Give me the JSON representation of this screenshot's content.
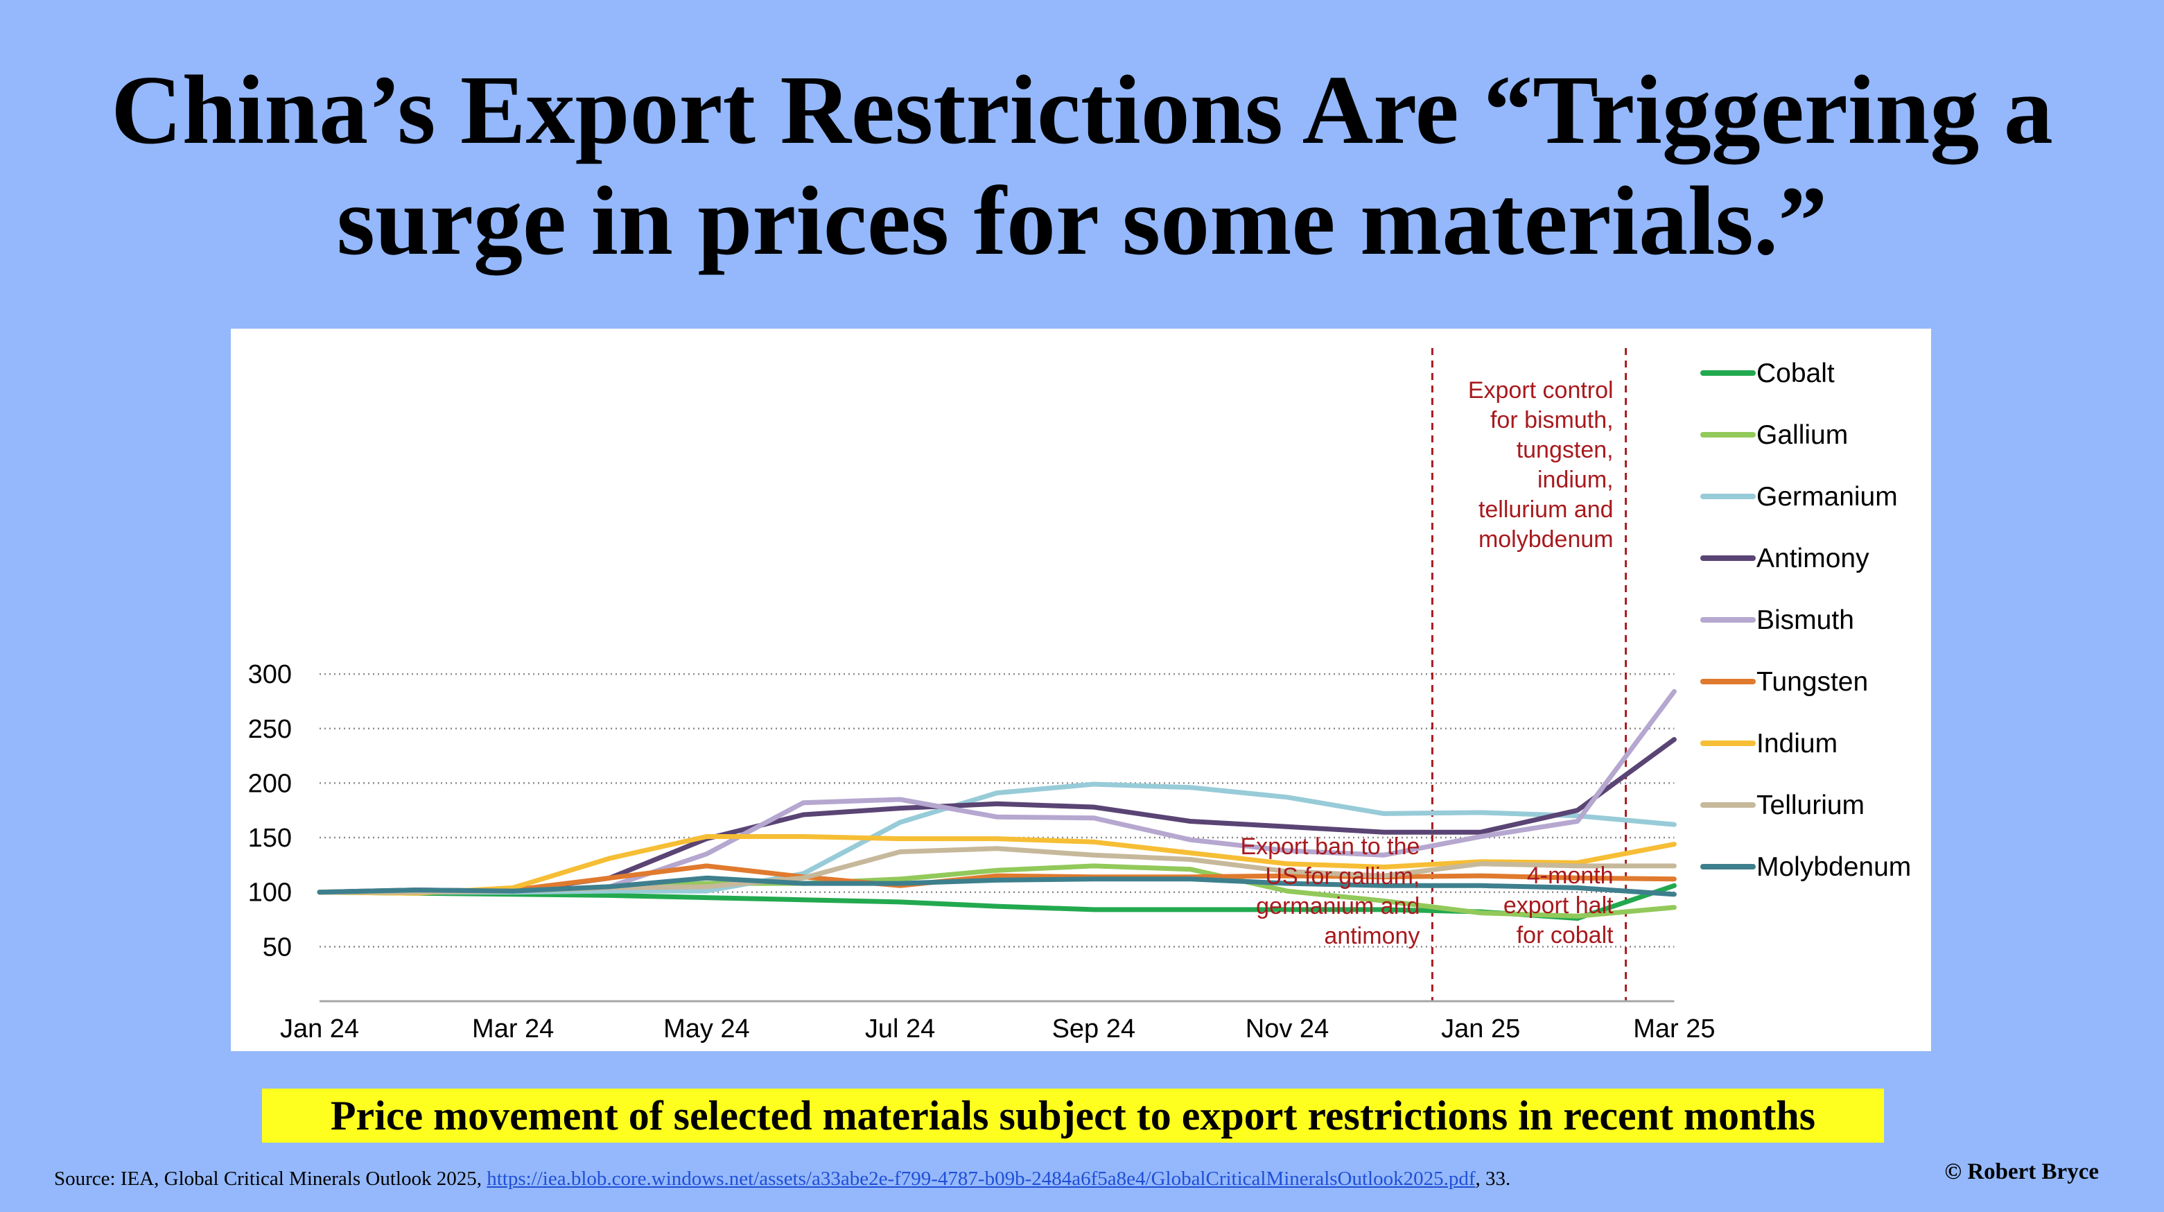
{
  "title": {
    "line1": "China’s Export Restrictions Are “Triggering a",
    "line2": "surge in prices for some materials.”"
  },
  "caption": "Price movement of selected materials subject to export restrictions in recent months",
  "source": {
    "prefix": "Source: IEA, Global Critical Minerals Outlook 2025, ",
    "link": "https://iea.blob.core.windows.net/assets/a33abe2e-f799-4787-b09b-2484a6f5a8e4/GlobalCriticalMineralsOutlook2025.pdf",
    "suffix": ", 33."
  },
  "copyright": "© Robert Bryce",
  "chart_data": {
    "type": "line",
    "title": "",
    "xlabel": "",
    "ylabel": "",
    "x_ticks": [
      "Jan 24",
      "Mar 24",
      "May 24",
      "Jul 24",
      "Sep 24",
      "Nov 24",
      "Jan 25",
      "Mar 25"
    ],
    "x_tick_index": [
      0,
      2,
      4,
      6,
      8,
      10,
      12,
      14
    ],
    "x": [
      "Jan 24",
      "Feb 24",
      "Mar 24",
      "Apr 24",
      "May 24",
      "Jun 24",
      "Jul 24",
      "Aug 24",
      "Sep 24",
      "Oct 24",
      "Nov 24",
      "Dec 24",
      "Jan 25",
      "Feb 25",
      "Mar 25"
    ],
    "y_ticks": [
      50,
      100,
      150,
      200,
      250,
      300
    ],
    "ylim": [
      0,
      300
    ],
    "grid": "horizontal dotted",
    "legend": "right",
    "series": [
      {
        "name": "Cobalt",
        "color": "#22a94f",
        "values": [
          100,
          99,
          98,
          97,
          95,
          93,
          91,
          87,
          84,
          84,
          84,
          84,
          82,
          76,
          106
        ]
      },
      {
        "name": "Gallium",
        "color": "#92c95a",
        "values": [
          100,
          100,
          101,
          104,
          108,
          108,
          112,
          120,
          124,
          121,
          101,
          92,
          81,
          78,
          86
        ]
      },
      {
        "name": "Germanium",
        "color": "#97cbd8",
        "values": [
          100,
          100,
          100,
          101,
          101,
          117,
          164,
          191,
          199,
          196,
          187,
          172,
          173,
          170,
          162
        ]
      },
      {
        "name": "Antimony",
        "color": "#5a4474",
        "values": [
          100,
          102,
          101,
          113,
          149,
          171,
          177,
          181,
          178,
          165,
          160,
          155,
          155,
          175,
          240
        ]
      },
      {
        "name": "Bismuth",
        "color": "#b5a7cf",
        "values": [
          100,
          100,
          101,
          105,
          135,
          182,
          185,
          169,
          168,
          148,
          138,
          134,
          151,
          165,
          284
        ]
      },
      {
        "name": "Tungsten",
        "color": "#e07a2e",
        "values": [
          100,
          100,
          102,
          113,
          124,
          114,
          106,
          115,
          114,
          114,
          115,
          114,
          115,
          113,
          112
        ]
      },
      {
        "name": "Indium",
        "color": "#f6be35",
        "values": [
          100,
          99,
          104,
          131,
          151,
          151,
          149,
          149,
          146,
          136,
          126,
          123,
          128,
          127,
          144
        ]
      },
      {
        "name": "Tellurium",
        "color": "#c6b89a",
        "values": [
          100,
          100,
          101,
          104,
          105,
          113,
          137,
          140,
          134,
          130,
          119,
          115,
          126,
          124,
          124
        ]
      },
      {
        "name": "Molybdenum",
        "color": "#3e7f8d",
        "values": [
          100,
          102,
          101,
          105,
          113,
          108,
          108,
          111,
          112,
          112,
          108,
          106,
          106,
          104,
          98
        ]
      }
    ],
    "annotations": [
      {
        "at": "Dec 24",
        "text_lines": [
          "Export ban to the",
          "US for gallium,",
          "germanium and",
          "antimony"
        ]
      },
      {
        "at": "Feb 25",
        "text_lines": [
          "4-month",
          "export halt",
          "for cobalt"
        ]
      },
      {
        "at": "Feb 25",
        "text_lines": [
          "Export control",
          "for bismuth,",
          "tungsten,",
          "indium,",
          "tellurium and",
          "molybdenum"
        ]
      }
    ],
    "annotation_color": "#a8191d"
  }
}
